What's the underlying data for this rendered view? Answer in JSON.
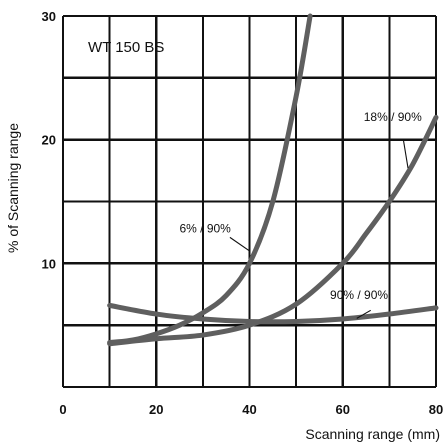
{
  "chart_data": {
    "type": "line",
    "title": "",
    "inset_label": "WT 150 BS",
    "xlabel": "Scanning range (mm)",
    "ylabel": "% of Scanning range",
    "xlim": [
      0,
      80
    ],
    "ylim": [
      0,
      30
    ],
    "x_ticks": [
      0,
      20,
      40,
      60,
      80
    ],
    "y_ticks": [
      10,
      20,
      30
    ],
    "grid": true,
    "series": [
      {
        "name": "6% / 90%",
        "color": "#5f5f5f",
        "x": [
          10,
          15,
          20,
          25,
          30,
          35,
          40,
          45,
          50,
          53
        ],
        "y": [
          3.6,
          3.8,
          4.3,
          5.0,
          6.0,
          7.4,
          10.0,
          15.0,
          23.5,
          30.0
        ]
      },
      {
        "name": "18% / 90%",
        "color": "#5f5f5f",
        "x": [
          10,
          20,
          30,
          40,
          50,
          60,
          65,
          70,
          75,
          80
        ],
        "y": [
          3.5,
          3.9,
          4.2,
          5.0,
          6.7,
          10.0,
          12.4,
          15.0,
          18.0,
          21.8
        ]
      },
      {
        "name": "90% / 90%",
        "color": "#5f5f5f",
        "x": [
          10,
          20,
          30,
          40,
          50,
          60,
          70,
          80
        ],
        "y": [
          6.6,
          5.9,
          5.5,
          5.3,
          5.3,
          5.5,
          5.9,
          6.4
        ]
      }
    ]
  }
}
